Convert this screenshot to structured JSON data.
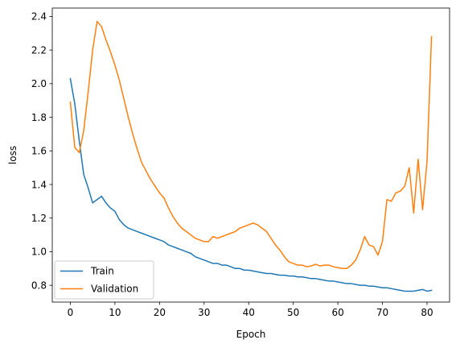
{
  "chart_data": {
    "type": "line",
    "xlabel": "Epoch",
    "ylabel": "loss",
    "xlim": [
      -4.05,
      85.05
    ],
    "ylim": [
      0.7,
      2.45
    ],
    "x_ticks": [
      0,
      10,
      20,
      30,
      40,
      50,
      60,
      70,
      80
    ],
    "y_ticks": [
      0.8,
      1.0,
      1.2,
      1.4,
      1.6,
      1.8,
      2.0,
      2.2,
      2.4
    ],
    "y_tick_labels": [
      "0.8",
      "1.0",
      "1.2",
      "1.4",
      "1.6",
      "1.8",
      "2.0",
      "2.2",
      "2.4"
    ],
    "grid": false,
    "legend_position": "lower-left",
    "x": [
      0,
      1,
      2,
      3,
      4,
      5,
      6,
      7,
      8,
      9,
      10,
      11,
      12,
      13,
      14,
      15,
      16,
      17,
      18,
      19,
      20,
      21,
      22,
      23,
      24,
      25,
      26,
      27,
      28,
      29,
      30,
      31,
      32,
      33,
      34,
      35,
      36,
      37,
      38,
      39,
      40,
      41,
      42,
      43,
      44,
      45,
      46,
      47,
      48,
      49,
      50,
      51,
      52,
      53,
      54,
      55,
      56,
      57,
      58,
      59,
      60,
      61,
      62,
      63,
      64,
      65,
      66,
      67,
      68,
      69,
      70,
      71,
      72,
      73,
      74,
      75,
      76,
      77,
      78,
      79,
      80,
      81
    ],
    "series": [
      {
        "name": "Train",
        "color": "#1f77b4",
        "values": [
          2.03,
          1.88,
          1.66,
          1.46,
          1.38,
          1.29,
          1.31,
          1.33,
          1.29,
          1.26,
          1.24,
          1.19,
          1.16,
          1.14,
          1.13,
          1.12,
          1.11,
          1.1,
          1.09,
          1.08,
          1.07,
          1.06,
          1.04,
          1.03,
          1.02,
          1.01,
          1.0,
          0.99,
          0.97,
          0.96,
          0.95,
          0.94,
          0.93,
          0.93,
          0.92,
          0.92,
          0.91,
          0.9,
          0.9,
          0.89,
          0.89,
          0.885,
          0.88,
          0.875,
          0.87,
          0.87,
          0.865,
          0.86,
          0.86,
          0.855,
          0.855,
          0.85,
          0.85,
          0.845,
          0.84,
          0.84,
          0.835,
          0.83,
          0.825,
          0.825,
          0.82,
          0.815,
          0.81,
          0.81,
          0.805,
          0.8,
          0.8,
          0.795,
          0.795,
          0.79,
          0.785,
          0.785,
          0.78,
          0.775,
          0.77,
          0.765,
          0.765,
          0.765,
          0.77,
          0.775,
          0.765,
          0.77
        ]
      },
      {
        "name": "Validation",
        "color": "#ff7f0e",
        "values": [
          1.89,
          1.62,
          1.59,
          1.72,
          1.95,
          2.2,
          2.37,
          2.34,
          2.26,
          2.19,
          2.11,
          2.02,
          1.91,
          1.8,
          1.7,
          1.61,
          1.53,
          1.48,
          1.43,
          1.39,
          1.35,
          1.32,
          1.26,
          1.21,
          1.17,
          1.14,
          1.12,
          1.1,
          1.08,
          1.07,
          1.06,
          1.06,
          1.09,
          1.08,
          1.09,
          1.1,
          1.11,
          1.12,
          1.14,
          1.15,
          1.16,
          1.17,
          1.16,
          1.14,
          1.12,
          1.08,
          1.04,
          1.01,
          0.97,
          0.94,
          0.93,
          0.92,
          0.92,
          0.91,
          0.915,
          0.925,
          0.915,
          0.92,
          0.92,
          0.91,
          0.905,
          0.9,
          0.9,
          0.92,
          0.95,
          1.01,
          1.09,
          1.04,
          1.03,
          0.98,
          1.06,
          1.31,
          1.3,
          1.35,
          1.36,
          1.39,
          1.5,
          1.23,
          1.55,
          1.25,
          1.54,
          2.28
        ]
      }
    ]
  }
}
